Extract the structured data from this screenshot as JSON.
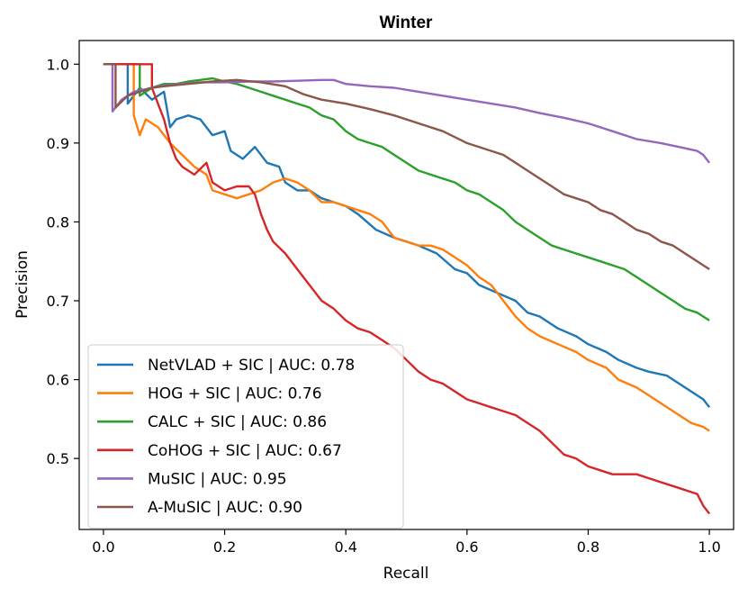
{
  "chart_data": {
    "type": "line",
    "title": "Winter",
    "xlabel": "Recall",
    "ylabel": "Precision",
    "xlim": [
      -0.04,
      1.04
    ],
    "ylim": [
      0.41,
      1.03
    ],
    "xticks": [
      0.0,
      0.2,
      0.4,
      0.6,
      0.8,
      1.0
    ],
    "xtick_labels": [
      "0.0",
      "0.2",
      "0.4",
      "0.6",
      "0.8",
      "1.0"
    ],
    "yticks": [
      0.5,
      0.6,
      0.7,
      0.8,
      0.9,
      1.0
    ],
    "ytick_labels": [
      "0.5",
      "0.6",
      "0.7",
      "0.8",
      "0.9",
      "1.0"
    ],
    "grid": false,
    "legend_position": "lower-left",
    "series": [
      {
        "name": "NetVLAD + SIC | AUC: 0.78",
        "color": "#1f77b4",
        "points": [
          [
            0.0,
            1.0
          ],
          [
            0.04,
            1.0
          ],
          [
            0.04,
            0.95
          ],
          [
            0.06,
            0.97
          ],
          [
            0.08,
            0.955
          ],
          [
            0.1,
            0.965
          ],
          [
            0.11,
            0.92
          ],
          [
            0.12,
            0.93
          ],
          [
            0.14,
            0.935
          ],
          [
            0.16,
            0.93
          ],
          [
            0.18,
            0.91
          ],
          [
            0.2,
            0.915
          ],
          [
            0.21,
            0.89
          ],
          [
            0.23,
            0.88
          ],
          [
            0.25,
            0.895
          ],
          [
            0.27,
            0.875
          ],
          [
            0.29,
            0.87
          ],
          [
            0.3,
            0.85
          ],
          [
            0.32,
            0.84
          ],
          [
            0.34,
            0.84
          ],
          [
            0.36,
            0.83
          ],
          [
            0.38,
            0.825
          ],
          [
            0.4,
            0.82
          ],
          [
            0.42,
            0.81
          ],
          [
            0.45,
            0.79
          ],
          [
            0.48,
            0.78
          ],
          [
            0.5,
            0.775
          ],
          [
            0.52,
            0.77
          ],
          [
            0.55,
            0.76
          ],
          [
            0.58,
            0.74
          ],
          [
            0.6,
            0.735
          ],
          [
            0.62,
            0.72
          ],
          [
            0.65,
            0.71
          ],
          [
            0.68,
            0.7
          ],
          [
            0.7,
            0.685
          ],
          [
            0.72,
            0.68
          ],
          [
            0.75,
            0.665
          ],
          [
            0.78,
            0.655
          ],
          [
            0.8,
            0.645
          ],
          [
            0.83,
            0.635
          ],
          [
            0.85,
            0.625
          ],
          [
            0.88,
            0.615
          ],
          [
            0.9,
            0.61
          ],
          [
            0.93,
            0.605
          ],
          [
            0.95,
            0.595
          ],
          [
            0.97,
            0.585
          ],
          [
            0.99,
            0.575
          ],
          [
            1.0,
            0.565
          ]
        ]
      },
      {
        "name": "HOG + SIC | AUC: 0.76",
        "color": "#ff7f0e",
        "points": [
          [
            0.0,
            1.0
          ],
          [
            0.05,
            1.0
          ],
          [
            0.05,
            0.935
          ],
          [
            0.06,
            0.91
          ],
          [
            0.07,
            0.93
          ],
          [
            0.09,
            0.92
          ],
          [
            0.11,
            0.9
          ],
          [
            0.13,
            0.885
          ],
          [
            0.15,
            0.87
          ],
          [
            0.17,
            0.86
          ],
          [
            0.18,
            0.84
          ],
          [
            0.2,
            0.835
          ],
          [
            0.22,
            0.83
          ],
          [
            0.24,
            0.835
          ],
          [
            0.26,
            0.84
          ],
          [
            0.28,
            0.85
          ],
          [
            0.3,
            0.855
          ],
          [
            0.32,
            0.85
          ],
          [
            0.34,
            0.84
          ],
          [
            0.36,
            0.825
          ],
          [
            0.38,
            0.825
          ],
          [
            0.4,
            0.82
          ],
          [
            0.42,
            0.815
          ],
          [
            0.44,
            0.81
          ],
          [
            0.46,
            0.8
          ],
          [
            0.48,
            0.78
          ],
          [
            0.5,
            0.775
          ],
          [
            0.52,
            0.77
          ],
          [
            0.54,
            0.77
          ],
          [
            0.56,
            0.765
          ],
          [
            0.58,
            0.755
          ],
          [
            0.6,
            0.745
          ],
          [
            0.62,
            0.73
          ],
          [
            0.64,
            0.72
          ],
          [
            0.66,
            0.7
          ],
          [
            0.68,
            0.68
          ],
          [
            0.7,
            0.665
          ],
          [
            0.72,
            0.655
          ],
          [
            0.75,
            0.645
          ],
          [
            0.78,
            0.635
          ],
          [
            0.8,
            0.625
          ],
          [
            0.83,
            0.615
          ],
          [
            0.85,
            0.6
          ],
          [
            0.88,
            0.59
          ],
          [
            0.9,
            0.58
          ],
          [
            0.93,
            0.565
          ],
          [
            0.95,
            0.555
          ],
          [
            0.97,
            0.545
          ],
          [
            0.99,
            0.54
          ],
          [
            1.0,
            0.535
          ]
        ]
      },
      {
        "name": "CALC + SIC | AUC: 0.86",
        "color": "#2ca02c",
        "points": [
          [
            0.0,
            1.0
          ],
          [
            0.06,
            1.0
          ],
          [
            0.06,
            0.96
          ],
          [
            0.08,
            0.97
          ],
          [
            0.1,
            0.975
          ],
          [
            0.12,
            0.975
          ],
          [
            0.14,
            0.978
          ],
          [
            0.16,
            0.98
          ],
          [
            0.18,
            0.982
          ],
          [
            0.2,
            0.978
          ],
          [
            0.22,
            0.975
          ],
          [
            0.24,
            0.97
          ],
          [
            0.26,
            0.965
          ],
          [
            0.28,
            0.96
          ],
          [
            0.3,
            0.955
          ],
          [
            0.32,
            0.95
          ],
          [
            0.34,
            0.945
          ],
          [
            0.36,
            0.935
          ],
          [
            0.38,
            0.93
          ],
          [
            0.4,
            0.915
          ],
          [
            0.42,
            0.905
          ],
          [
            0.44,
            0.9
          ],
          [
            0.46,
            0.895
          ],
          [
            0.48,
            0.885
          ],
          [
            0.5,
            0.875
          ],
          [
            0.52,
            0.865
          ],
          [
            0.54,
            0.86
          ],
          [
            0.56,
            0.855
          ],
          [
            0.58,
            0.85
          ],
          [
            0.6,
            0.84
          ],
          [
            0.62,
            0.835
          ],
          [
            0.64,
            0.825
          ],
          [
            0.66,
            0.815
          ],
          [
            0.68,
            0.8
          ],
          [
            0.7,
            0.79
          ],
          [
            0.72,
            0.78
          ],
          [
            0.74,
            0.77
          ],
          [
            0.76,
            0.765
          ],
          [
            0.78,
            0.76
          ],
          [
            0.8,
            0.755
          ],
          [
            0.82,
            0.75
          ],
          [
            0.84,
            0.745
          ],
          [
            0.86,
            0.74
          ],
          [
            0.88,
            0.73
          ],
          [
            0.9,
            0.72
          ],
          [
            0.92,
            0.71
          ],
          [
            0.94,
            0.7
          ],
          [
            0.96,
            0.69
          ],
          [
            0.98,
            0.685
          ],
          [
            1.0,
            0.675
          ]
        ]
      },
      {
        "name": "CoHOG + SIC | AUC: 0.67",
        "color": "#d62728",
        "points": [
          [
            0.0,
            1.0
          ],
          [
            0.08,
            1.0
          ],
          [
            0.08,
            0.97
          ],
          [
            0.09,
            0.95
          ],
          [
            0.1,
            0.93
          ],
          [
            0.11,
            0.9
          ],
          [
            0.12,
            0.88
          ],
          [
            0.13,
            0.87
          ],
          [
            0.15,
            0.86
          ],
          [
            0.17,
            0.875
          ],
          [
            0.18,
            0.85
          ],
          [
            0.2,
            0.84
          ],
          [
            0.22,
            0.845
          ],
          [
            0.24,
            0.845
          ],
          [
            0.25,
            0.835
          ],
          [
            0.26,
            0.81
          ],
          [
            0.27,
            0.79
          ],
          [
            0.28,
            0.775
          ],
          [
            0.3,
            0.76
          ],
          [
            0.32,
            0.74
          ],
          [
            0.34,
            0.72
          ],
          [
            0.36,
            0.7
          ],
          [
            0.38,
            0.69
          ],
          [
            0.4,
            0.675
          ],
          [
            0.42,
            0.665
          ],
          [
            0.44,
            0.66
          ],
          [
            0.46,
            0.65
          ],
          [
            0.48,
            0.64
          ],
          [
            0.5,
            0.625
          ],
          [
            0.52,
            0.61
          ],
          [
            0.54,
            0.6
          ],
          [
            0.56,
            0.595
          ],
          [
            0.58,
            0.585
          ],
          [
            0.6,
            0.575
          ],
          [
            0.62,
            0.57
          ],
          [
            0.64,
            0.565
          ],
          [
            0.66,
            0.56
          ],
          [
            0.68,
            0.555
          ],
          [
            0.7,
            0.545
          ],
          [
            0.72,
            0.535
          ],
          [
            0.74,
            0.52
          ],
          [
            0.76,
            0.505
          ],
          [
            0.78,
            0.5
          ],
          [
            0.8,
            0.49
          ],
          [
            0.82,
            0.485
          ],
          [
            0.84,
            0.48
          ],
          [
            0.86,
            0.48
          ],
          [
            0.88,
            0.48
          ],
          [
            0.9,
            0.475
          ],
          [
            0.92,
            0.47
          ],
          [
            0.94,
            0.465
          ],
          [
            0.96,
            0.46
          ],
          [
            0.98,
            0.455
          ],
          [
            0.99,
            0.44
          ],
          [
            1.0,
            0.43
          ]
        ]
      },
      {
        "name": "MuSIC | AUC: 0.95",
        "color": "#9467bd",
        "points": [
          [
            0.0,
            1.0
          ],
          [
            0.015,
            1.0
          ],
          [
            0.015,
            0.94
          ],
          [
            0.03,
            0.955
          ],
          [
            0.05,
            0.965
          ],
          [
            0.08,
            0.97
          ],
          [
            0.1,
            0.973
          ],
          [
            0.13,
            0.975
          ],
          [
            0.16,
            0.977
          ],
          [
            0.2,
            0.977
          ],
          [
            0.24,
            0.978
          ],
          [
            0.28,
            0.978
          ],
          [
            0.32,
            0.979
          ],
          [
            0.36,
            0.98
          ],
          [
            0.38,
            0.98
          ],
          [
            0.4,
            0.975
          ],
          [
            0.44,
            0.972
          ],
          [
            0.48,
            0.97
          ],
          [
            0.52,
            0.965
          ],
          [
            0.56,
            0.96
          ],
          [
            0.6,
            0.955
          ],
          [
            0.64,
            0.95
          ],
          [
            0.68,
            0.945
          ],
          [
            0.72,
            0.938
          ],
          [
            0.76,
            0.932
          ],
          [
            0.8,
            0.925
          ],
          [
            0.84,
            0.915
          ],
          [
            0.88,
            0.905
          ],
          [
            0.92,
            0.9
          ],
          [
            0.95,
            0.895
          ],
          [
            0.98,
            0.89
          ],
          [
            0.99,
            0.885
          ],
          [
            1.0,
            0.875
          ]
        ]
      },
      {
        "name": "A-MuSIC | AUC: 0.90",
        "color": "#8c564b",
        "points": [
          [
            0.0,
            1.0
          ],
          [
            0.02,
            1.0
          ],
          [
            0.02,
            0.945
          ],
          [
            0.04,
            0.96
          ],
          [
            0.06,
            0.965
          ],
          [
            0.08,
            0.97
          ],
          [
            0.1,
            0.972
          ],
          [
            0.14,
            0.975
          ],
          [
            0.18,
            0.978
          ],
          [
            0.22,
            0.98
          ],
          [
            0.26,
            0.977
          ],
          [
            0.3,
            0.972
          ],
          [
            0.33,
            0.962
          ],
          [
            0.36,
            0.955
          ],
          [
            0.4,
            0.95
          ],
          [
            0.44,
            0.943
          ],
          [
            0.48,
            0.935
          ],
          [
            0.52,
            0.925
          ],
          [
            0.56,
            0.915
          ],
          [
            0.6,
            0.9
          ],
          [
            0.64,
            0.89
          ],
          [
            0.66,
            0.885
          ],
          [
            0.68,
            0.875
          ],
          [
            0.7,
            0.865
          ],
          [
            0.72,
            0.855
          ],
          [
            0.74,
            0.845
          ],
          [
            0.76,
            0.835
          ],
          [
            0.78,
            0.83
          ],
          [
            0.8,
            0.825
          ],
          [
            0.82,
            0.815
          ],
          [
            0.84,
            0.81
          ],
          [
            0.86,
            0.8
          ],
          [
            0.88,
            0.79
          ],
          [
            0.9,
            0.785
          ],
          [
            0.92,
            0.775
          ],
          [
            0.94,
            0.77
          ],
          [
            0.96,
            0.76
          ],
          [
            0.98,
            0.75
          ],
          [
            0.99,
            0.745
          ],
          [
            1.0,
            0.74
          ]
        ]
      }
    ]
  }
}
